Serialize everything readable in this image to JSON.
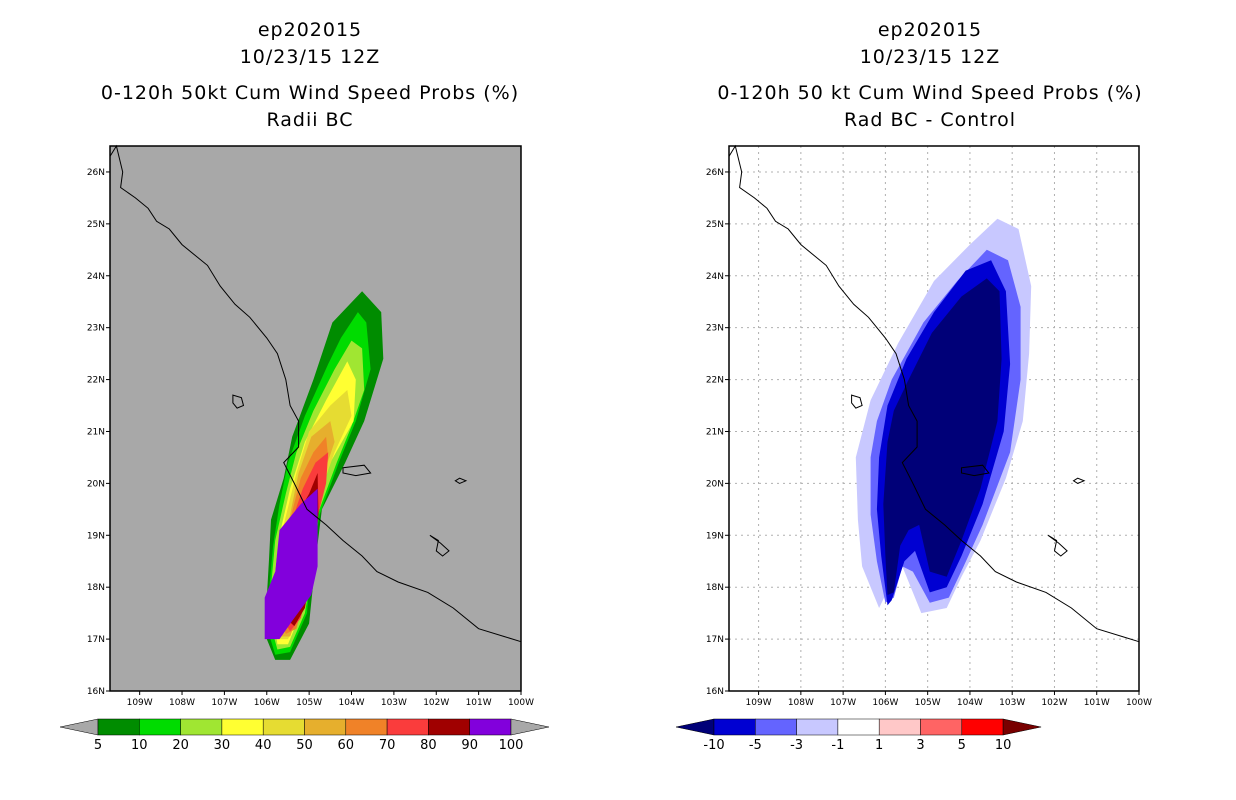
{
  "chart_data": [
    {
      "type": "contour-map",
      "title_lines": [
        "ep202015",
        "10/23/15 12Z",
        "0-120h 50kt Cum Wind Speed Probs (%)",
        "Radii BC"
      ],
      "x_ticks": [
        "109W",
        "108W",
        "107W",
        "106W",
        "105W",
        "104W",
        "103W",
        "102W",
        "101W",
        "100W"
      ],
      "y_ticks": [
        "26N",
        "25N",
        "24N",
        "23N",
        "22N",
        "21N",
        "20N",
        "19N",
        "18N",
        "17N",
        "16N"
      ],
      "xlim": [
        -109.7,
        -100.0
      ],
      "ylim": [
        16.0,
        26.5
      ],
      "background": "#a8a8a8",
      "colorbar": {
        "labels": [
          "5",
          "10",
          "20",
          "30",
          "40",
          "50",
          "60",
          "70",
          "80",
          "90",
          "100"
        ],
        "colors": [
          "#008c00",
          "#00dc00",
          "#a0e632",
          "#ffff32",
          "#e6dc32",
          "#e6af2d",
          "#f08228",
          "#fa3c3c",
          "#a00000",
          "#8200dc"
        ],
        "end_color": "#a8a8a8"
      },
      "contours": [
        {
          "level": 5,
          "color": "#008c00",
          "points": [
            [
              -106.0,
              17.0
            ],
            [
              -106.0,
              17.8
            ],
            [
              -105.95,
              18.5
            ],
            [
              -105.9,
              19.3
            ],
            [
              -105.6,
              20.1
            ],
            [
              -105.4,
              20.9
            ],
            [
              -104.9,
              22.0
            ],
            [
              -104.45,
              23.1
            ],
            [
              -103.75,
              23.7
            ],
            [
              -103.3,
              23.3
            ],
            [
              -103.25,
              22.4
            ],
            [
              -103.7,
              21.2
            ],
            [
              -104.15,
              20.4
            ],
            [
              -104.7,
              19.5
            ],
            [
              -104.85,
              18.5
            ],
            [
              -105.0,
              17.3
            ],
            [
              -105.45,
              16.6
            ],
            [
              -105.8,
              16.6
            ]
          ]
        },
        {
          "level": 10,
          "color": "#00dc00",
          "points": [
            [
              -105.95,
              17.1
            ],
            [
              -105.95,
              17.9
            ],
            [
              -105.85,
              18.8
            ],
            [
              -105.7,
              19.6
            ],
            [
              -105.5,
              20.4
            ],
            [
              -105.1,
              21.3
            ],
            [
              -104.55,
              22.3
            ],
            [
              -104.25,
              22.8
            ],
            [
              -103.85,
              23.3
            ],
            [
              -103.65,
              23.1
            ],
            [
              -103.55,
              22.2
            ],
            [
              -103.9,
              21.2
            ],
            [
              -104.3,
              20.4
            ],
            [
              -104.75,
              19.4
            ],
            [
              -104.95,
              18.5
            ],
            [
              -105.05,
              17.5
            ],
            [
              -105.45,
              16.75
            ],
            [
              -105.8,
              16.7
            ]
          ]
        },
        {
          "level": 20,
          "color": "#a0e632",
          "points": [
            [
              -105.85,
              17.1
            ],
            [
              -105.9,
              18.0
            ],
            [
              -105.8,
              18.9
            ],
            [
              -105.55,
              19.8
            ],
            [
              -105.3,
              20.6
            ],
            [
              -104.9,
              21.4
            ],
            [
              -104.4,
              22.2
            ],
            [
              -104.0,
              22.75
            ],
            [
              -103.75,
              22.6
            ],
            [
              -103.7,
              21.8
            ],
            [
              -104.0,
              21.1
            ],
            [
              -104.35,
              20.4
            ],
            [
              -104.8,
              19.4
            ],
            [
              -104.9,
              18.5
            ],
            [
              -105.1,
              17.5
            ],
            [
              -105.45,
              16.85
            ],
            [
              -105.75,
              16.8
            ]
          ]
        },
        {
          "level": 30,
          "color": "#ffff32",
          "points": [
            [
              -105.8,
              17.2
            ],
            [
              -105.85,
              18.0
            ],
            [
              -105.7,
              19.0
            ],
            [
              -105.45,
              19.9
            ],
            [
              -105.1,
              20.8
            ],
            [
              -104.6,
              21.6
            ],
            [
              -104.1,
              22.35
            ],
            [
              -103.9,
              22.0
            ],
            [
              -103.95,
              21.2
            ],
            [
              -104.5,
              20.4
            ],
            [
              -104.85,
              19.5
            ],
            [
              -104.95,
              18.5
            ],
            [
              -105.2,
              17.5
            ],
            [
              -105.5,
              16.9
            ],
            [
              -105.75,
              16.9
            ]
          ]
        },
        {
          "level": 40,
          "color": "#e6dc32",
          "points": [
            [
              -105.75,
              17.2
            ],
            [
              -105.75,
              18.2
            ],
            [
              -105.6,
              19.2
            ],
            [
              -105.3,
              20.2
            ],
            [
              -105.0,
              21.0
            ],
            [
              -104.5,
              21.5
            ],
            [
              -104.1,
              21.8
            ],
            [
              -104.0,
              21.3
            ],
            [
              -104.4,
              20.6
            ],
            [
              -104.75,
              19.8
            ],
            [
              -104.95,
              18.7
            ],
            [
              -105.2,
              17.5
            ],
            [
              -105.5,
              17.0
            ],
            [
              -105.7,
              17.0
            ]
          ]
        },
        {
          "level": 50,
          "color": "#e6af2d",
          "points": [
            [
              -105.7,
              17.3
            ],
            [
              -105.7,
              18.2
            ],
            [
              -105.5,
              19.2
            ],
            [
              -105.25,
              20.2
            ],
            [
              -104.95,
              20.9
            ],
            [
              -104.5,
              21.2
            ],
            [
              -104.4,
              20.8
            ],
            [
              -104.65,
              20.2
            ],
            [
              -104.85,
              19.4
            ],
            [
              -104.95,
              18.6
            ],
            [
              -105.2,
              17.6
            ],
            [
              -105.45,
              17.05
            ],
            [
              -105.65,
              17.05
            ]
          ]
        },
        {
          "level": 60,
          "color": "#f08228",
          "points": [
            [
              -105.65,
              17.3
            ],
            [
              -105.65,
              18.3
            ],
            [
              -105.45,
              19.3
            ],
            [
              -105.2,
              20.1
            ],
            [
              -104.9,
              20.6
            ],
            [
              -104.6,
              20.9
            ],
            [
              -104.55,
              20.5
            ],
            [
              -104.75,
              19.8
            ],
            [
              -104.9,
              19.0
            ],
            [
              -105.05,
              18.0
            ],
            [
              -105.3,
              17.2
            ],
            [
              -105.55,
              17.1
            ]
          ]
        },
        {
          "level": 70,
          "color": "#fa3c3c",
          "points": [
            [
              -105.6,
              17.35
            ],
            [
              -105.6,
              18.3
            ],
            [
              -105.4,
              19.3
            ],
            [
              -105.15,
              19.9
            ],
            [
              -104.85,
              20.4
            ],
            [
              -104.55,
              20.6
            ],
            [
              -104.6,
              20.0
            ],
            [
              -104.85,
              19.2
            ],
            [
              -104.95,
              18.2
            ],
            [
              -105.2,
              17.4
            ],
            [
              -105.45,
              17.15
            ]
          ]
        },
        {
          "level": 80,
          "color": "#a00000",
          "points": [
            [
              -105.55,
              17.4
            ],
            [
              -105.55,
              18.3
            ],
            [
              -105.35,
              19.3
            ],
            [
              -105.0,
              19.8
            ],
            [
              -104.8,
              20.2
            ],
            [
              -104.78,
              19.4
            ],
            [
              -104.9,
              18.5
            ],
            [
              -105.1,
              17.6
            ],
            [
              -105.35,
              17.25
            ]
          ]
        },
        {
          "level": 90,
          "color": "#8200dc",
          "points": [
            [
              -106.05,
              17.0
            ],
            [
              -106.05,
              17.8
            ],
            [
              -105.8,
              18.3
            ],
            [
              -105.7,
              19.1
            ],
            [
              -105.2,
              19.6
            ],
            [
              -104.8,
              19.9
            ],
            [
              -104.8,
              18.4
            ],
            [
              -104.95,
              17.85
            ],
            [
              -105.4,
              17.35
            ],
            [
              -105.7,
              17.0
            ]
          ]
        }
      ]
    },
    {
      "type": "contour-map",
      "title_lines": [
        "ep202015",
        "10/23/15 12Z",
        "0-120h 50 kt Cum Wind Speed Probs (%)",
        "Rad BC - Control"
      ],
      "x_ticks": [
        "109W",
        "108W",
        "107W",
        "106W",
        "105W",
        "104W",
        "103W",
        "102W",
        "101W",
        "100W"
      ],
      "y_ticks": [
        "26N",
        "25N",
        "24N",
        "23N",
        "22N",
        "21N",
        "20N",
        "19N",
        "18N",
        "17N",
        "16N"
      ],
      "xlim": [
        -109.7,
        -100.0
      ],
      "ylim": [
        16.0,
        26.5
      ],
      "background": "#ffffff",
      "grid": true,
      "colorbar": {
        "labels": [
          "-10",
          "-5",
          "-3",
          "-1",
          "1",
          "3",
          "5",
          "10"
        ],
        "colors": [
          "#0000d2",
          "#6464ff",
          "#c8c8ff",
          "#ffffff",
          "#ffc8c8",
          "#ff6464",
          "#ff0000"
        ],
        "end_color_left": "#000078",
        "end_color_right": "#780000"
      },
      "contours": [
        {
          "level": -1,
          "color": "#c8c8ff",
          "points": [
            [
              -106.7,
              20.5
            ],
            [
              -106.65,
              19.3
            ],
            [
              -106.55,
              18.4
            ],
            [
              -106.15,
              17.6
            ],
            [
              -105.85,
              18.1
            ],
            [
              -105.7,
              18.8
            ],
            [
              -105.6,
              18.4
            ],
            [
              -105.15,
              17.5
            ],
            [
              -104.55,
              17.6
            ],
            [
              -104.2,
              18.2
            ],
            [
              -103.75,
              18.9
            ],
            [
              -103.15,
              20.1
            ],
            [
              -102.75,
              21.2
            ],
            [
              -102.6,
              22.5
            ],
            [
              -102.55,
              23.8
            ],
            [
              -102.85,
              24.9
            ],
            [
              -103.35,
              25.1
            ],
            [
              -104.0,
              24.6
            ],
            [
              -104.85,
              23.9
            ],
            [
              -105.7,
              22.7
            ],
            [
              -106.35,
              21.6
            ]
          ]
        },
        {
          "level": -3,
          "color": "#6464ff",
          "points": [
            [
              -106.35,
              20.5
            ],
            [
              -106.35,
              19.4
            ],
            [
              -106.2,
              18.5
            ],
            [
              -106.0,
              17.7
            ],
            [
              -105.8,
              17.8
            ],
            [
              -105.6,
              18.4
            ],
            [
              -105.35,
              18.3
            ],
            [
              -104.95,
              17.7
            ],
            [
              -104.5,
              17.8
            ],
            [
              -104.15,
              18.4
            ],
            [
              -103.7,
              19.2
            ],
            [
              -103.05,
              20.6
            ],
            [
              -102.8,
              22.0
            ],
            [
              -102.8,
              23.4
            ],
            [
              -103.1,
              24.3
            ],
            [
              -103.6,
              24.5
            ],
            [
              -104.3,
              23.9
            ],
            [
              -105.1,
              23.1
            ],
            [
              -105.85,
              22.0
            ],
            [
              -106.2,
              21.2
            ]
          ]
        },
        {
          "level": -5,
          "color": "#0000d2",
          "points": [
            [
              -106.15,
              20.5
            ],
            [
              -106.2,
              19.5
            ],
            [
              -106.1,
              18.6
            ],
            [
              -105.95,
              17.65
            ],
            [
              -105.85,
              17.75
            ],
            [
              -105.55,
              18.5
            ],
            [
              -105.3,
              18.7
            ],
            [
              -104.95,
              17.9
            ],
            [
              -104.55,
              18.0
            ],
            [
              -104.2,
              18.6
            ],
            [
              -103.7,
              19.6
            ],
            [
              -103.2,
              21.0
            ],
            [
              -103.05,
              22.3
            ],
            [
              -103.15,
              23.7
            ],
            [
              -103.5,
              24.3
            ],
            [
              -104.1,
              24.1
            ],
            [
              -104.85,
              23.3
            ],
            [
              -105.5,
              22.4
            ],
            [
              -105.95,
              21.5
            ]
          ]
        },
        {
          "level": -10,
          "color": "#000078",
          "points": [
            [
              -105.95,
              20.8
            ],
            [
              -106.05,
              19.6
            ],
            [
              -106.0,
              18.6
            ],
            [
              -105.95,
              17.85
            ],
            [
              -105.8,
              17.9
            ],
            [
              -105.65,
              18.8
            ],
            [
              -105.45,
              19.1
            ],
            [
              -105.2,
              19.2
            ],
            [
              -104.95,
              18.3
            ],
            [
              -104.55,
              18.2
            ],
            [
              -104.2,
              18.9
            ],
            [
              -103.75,
              19.9
            ],
            [
              -103.35,
              21.2
            ],
            [
              -103.25,
              22.4
            ],
            [
              -103.3,
              23.7
            ],
            [
              -103.6,
              23.95
            ],
            [
              -104.2,
              23.6
            ],
            [
              -104.9,
              22.9
            ],
            [
              -105.45,
              22.0
            ],
            [
              -105.8,
              21.4
            ]
          ]
        }
      ]
    }
  ]
}
